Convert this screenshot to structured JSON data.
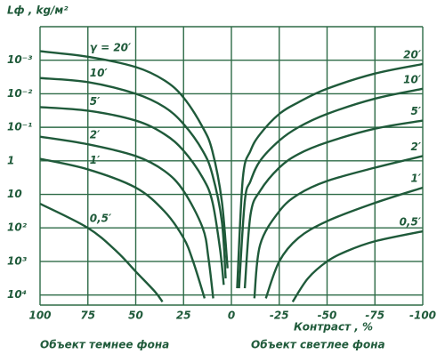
{
  "chart_data": {
    "type": "line",
    "y_label": "Lф , kg/м²",
    "x_label": "Контраст , %",
    "annotations": [
      "Объект темнее фона",
      "Объект светлее фона"
    ],
    "color": "#1f5a3a",
    "grid": true,
    "log_scale_y": true,
    "xlim": [
      100,
      -100
    ],
    "xticks": [
      100,
      75,
      50,
      25,
      0,
      -25,
      -50,
      -75,
      -100
    ],
    "ylim": [
      0.0001,
      20000
    ],
    "yticks": [
      {
        "value": 0.001,
        "label": "10⁻³"
      },
      {
        "value": 0.01,
        "label": "10⁻²"
      },
      {
        "value": 0.1,
        "label": "10⁻¹"
      },
      1,
      10,
      {
        "value": 100,
        "label": "10²"
      },
      {
        "value": 1000,
        "label": "10³"
      },
      {
        "value": 10000,
        "label": "10⁴"
      }
    ],
    "series": [
      {
        "name": "γ = 20′",
        "x": [
          100,
          75,
          50,
          35,
          25,
          15,
          10,
          5,
          2
        ],
        "values": [
          0.00054,
          0.00079,
          0.0016,
          0.004,
          0.013,
          0.1,
          0.5,
          16,
          1600
        ]
      },
      {
        "name": "10′",
        "x": [
          100,
          75,
          50,
          35,
          25,
          15,
          10,
          5,
          3
        ],
        "values": [
          0.0034,
          0.0045,
          0.01,
          0.025,
          0.08,
          0.5,
          2.5,
          63,
          3200
        ]
      },
      {
        "name": "5′",
        "x": [
          100,
          75,
          50,
          35,
          25,
          15,
          10,
          6,
          4
        ],
        "values": [
          0.025,
          0.032,
          0.063,
          0.16,
          0.5,
          3.2,
          16,
          400,
          5000
        ]
      },
      {
        "name": "2′",
        "x": [
          100,
          75,
          50,
          35,
          25,
          15,
          12,
          9.5
        ],
        "values": [
          0.19,
          0.32,
          0.72,
          2,
          7.9,
          100,
          790,
          12600
        ]
      },
      {
        "name": "1′",
        "x": [
          100,
          75,
          50,
          35,
          25,
          20,
          14
        ],
        "values": [
          0.87,
          1.8,
          6.3,
          32,
          200,
          1000,
          12600
        ]
      },
      {
        "name": "0,5′",
        "x": [
          100,
          75,
          60,
          50,
          40,
          36
        ],
        "values": [
          19,
          100,
          500,
          2000,
          7900,
          16000
        ]
      },
      {
        "name": "20′",
        "x": [
          -3,
          -6,
          -10,
          -15,
          -25,
          -35,
          -50,
          -75,
          -100
        ],
        "values": [
          6300,
          3.2,
          0.5,
          0.16,
          0.04,
          0.018,
          0.0071,
          0.0025,
          0.0013
        ]
      },
      {
        "name": "10′",
        "x": [
          -4,
          -7,
          -10,
          -15,
          -25,
          -35,
          -50,
          -75,
          -100
        ],
        "values": [
          6300,
          16,
          4,
          1,
          0.25,
          0.1,
          0.04,
          0.014,
          0.0071
        ]
      },
      {
        "name": "5′",
        "x": [
          -7,
          -10,
          -15,
          -25,
          -35,
          -50,
          -75,
          -100
        ],
        "values": [
          6300,
          40,
          7.9,
          1.6,
          0.63,
          0.28,
          0.11,
          0.063
        ]
      },
      {
        "name": "2′",
        "x": [
          -12,
          -15,
          -25,
          -35,
          -50,
          -75,
          -100
        ],
        "values": [
          12600,
          320,
          32,
          10,
          4,
          1.6,
          0.72
        ]
      },
      {
        "name": "1′",
        "x": [
          -18,
          -25,
          -35,
          -50,
          -75,
          -100
        ],
        "values": [
          12600,
          1000,
          200,
          63,
          18,
          6.3
        ]
      },
      {
        "name": "0,5′",
        "x": [
          -32,
          -40,
          -50,
          -60,
          -75,
          -100
        ],
        "values": [
          16000,
          3200,
          1000,
          500,
          250,
          126
        ]
      }
    ]
  }
}
